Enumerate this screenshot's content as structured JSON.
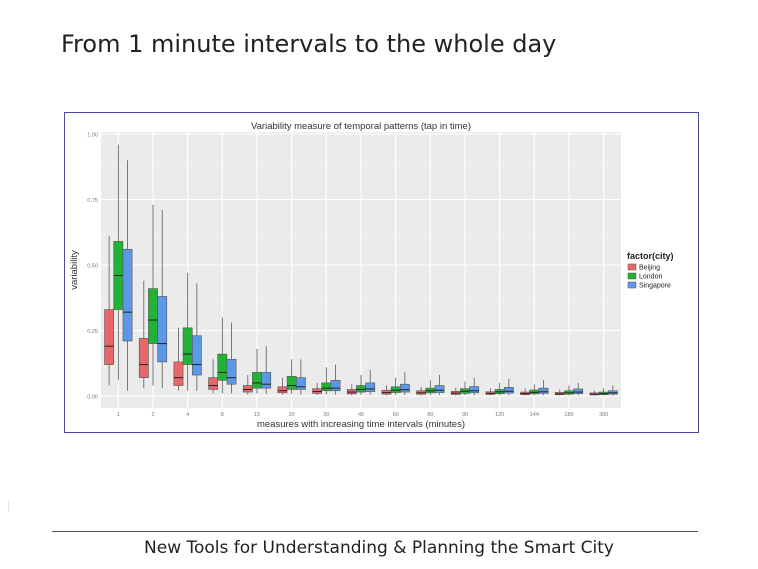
{
  "slide": {
    "title": "From 1 minute intervals to the whole day",
    "footer": "New Tools for Understanding & Planning the Smart City"
  },
  "chart_data": {
    "type": "boxplot",
    "title": "Variability measure of temporal patterns (tap in time)",
    "xlabel": "measures with increasing time intervals (minutes)",
    "ylabel": "variability",
    "ylim": [
      0,
      1
    ],
    "yticks": [
      0.0,
      0.25,
      0.5,
      0.75,
      1.0
    ],
    "ytick_labels": [
      "0.00",
      "0.25",
      "0.50",
      "0.75",
      "1.00"
    ],
    "categories": [
      "1",
      "2",
      "4",
      "8",
      "15",
      "20",
      "30",
      "45",
      "60",
      "80",
      "90",
      "120",
      "144",
      "180",
      "360"
    ],
    "legend": {
      "title": "factor(city)",
      "position": "right"
    },
    "grid": true,
    "colors": {
      "Beijing": "#e8686a",
      "London": "#22b235",
      "Singapore": "#5c98e6",
      "panel": "#ebebeb",
      "gridline": "#ffffff",
      "frame": "#4b4b9b"
    },
    "series": [
      {
        "name": "Beijing",
        "boxes": [
          {
            "low": 0.04,
            "q1": 0.12,
            "median": 0.19,
            "q3": 0.33,
            "high": 0.61
          },
          {
            "low": 0.03,
            "q1": 0.07,
            "median": 0.12,
            "q3": 0.22,
            "high": 0.44
          },
          {
            "low": 0.02,
            "q1": 0.04,
            "median": 0.07,
            "q3": 0.13,
            "high": 0.26
          },
          {
            "low": 0.01,
            "q1": 0.025,
            "median": 0.04,
            "q3": 0.07,
            "high": 0.14
          },
          {
            "low": 0.005,
            "q1": 0.015,
            "median": 0.025,
            "q3": 0.04,
            "high": 0.08
          },
          {
            "low": 0.005,
            "q1": 0.012,
            "median": 0.02,
            "q3": 0.035,
            "high": 0.07
          },
          {
            "low": 0.004,
            "q1": 0.01,
            "median": 0.017,
            "q3": 0.028,
            "high": 0.05
          },
          {
            "low": 0.003,
            "q1": 0.008,
            "median": 0.015,
            "q3": 0.025,
            "high": 0.045
          },
          {
            "low": 0.003,
            "q1": 0.007,
            "median": 0.013,
            "q3": 0.022,
            "high": 0.04
          },
          {
            "low": 0.003,
            "q1": 0.007,
            "median": 0.012,
            "q3": 0.02,
            "high": 0.035
          },
          {
            "low": 0.002,
            "q1": 0.006,
            "median": 0.011,
            "q3": 0.018,
            "high": 0.032
          },
          {
            "low": 0.002,
            "q1": 0.006,
            "median": 0.01,
            "q3": 0.016,
            "high": 0.03
          },
          {
            "low": 0.002,
            "q1": 0.005,
            "median": 0.009,
            "q3": 0.015,
            "high": 0.028
          },
          {
            "low": 0.002,
            "q1": 0.005,
            "median": 0.008,
            "q3": 0.014,
            "high": 0.025
          },
          {
            "low": 0.001,
            "q1": 0.004,
            "median": 0.007,
            "q3": 0.012,
            "high": 0.02
          }
        ]
      },
      {
        "name": "London",
        "boxes": [
          {
            "low": 0.06,
            "q1": 0.33,
            "median": 0.46,
            "q3": 0.59,
            "high": 0.96
          },
          {
            "low": 0.04,
            "q1": 0.2,
            "median": 0.29,
            "q3": 0.41,
            "high": 0.73
          },
          {
            "low": 0.02,
            "q1": 0.12,
            "median": 0.16,
            "q3": 0.26,
            "high": 0.47
          },
          {
            "low": 0.01,
            "q1": 0.06,
            "median": 0.09,
            "q3": 0.16,
            "high": 0.3
          },
          {
            "low": 0.01,
            "q1": 0.03,
            "median": 0.05,
            "q3": 0.09,
            "high": 0.18
          },
          {
            "low": 0.008,
            "q1": 0.025,
            "median": 0.04,
            "q3": 0.075,
            "high": 0.14
          },
          {
            "low": 0.006,
            "q1": 0.02,
            "median": 0.03,
            "q3": 0.05,
            "high": 0.11
          },
          {
            "low": 0.005,
            "q1": 0.015,
            "median": 0.025,
            "q3": 0.04,
            "high": 0.08
          },
          {
            "low": 0.004,
            "q1": 0.013,
            "median": 0.022,
            "q3": 0.035,
            "high": 0.07
          },
          {
            "low": 0.004,
            "q1": 0.012,
            "median": 0.02,
            "q3": 0.03,
            "high": 0.06
          },
          {
            "low": 0.003,
            "q1": 0.01,
            "median": 0.018,
            "q3": 0.028,
            "high": 0.055
          },
          {
            "low": 0.003,
            "q1": 0.009,
            "median": 0.016,
            "q3": 0.025,
            "high": 0.05
          },
          {
            "low": 0.003,
            "q1": 0.008,
            "median": 0.014,
            "q3": 0.023,
            "high": 0.045
          },
          {
            "low": 0.002,
            "q1": 0.007,
            "median": 0.012,
            "q3": 0.02,
            "high": 0.04
          },
          {
            "low": 0.002,
            "q1": 0.005,
            "median": 0.009,
            "q3": 0.015,
            "high": 0.03
          }
        ]
      },
      {
        "name": "Singapore",
        "boxes": [
          {
            "low": 0.02,
            "q1": 0.21,
            "median": 0.32,
            "q3": 0.56,
            "high": 0.9
          },
          {
            "low": 0.03,
            "q1": 0.13,
            "median": 0.2,
            "q3": 0.38,
            "high": 0.71
          },
          {
            "low": 0.02,
            "q1": 0.08,
            "median": 0.12,
            "q3": 0.23,
            "high": 0.43
          },
          {
            "low": 0.01,
            "q1": 0.045,
            "median": 0.07,
            "q3": 0.14,
            "high": 0.28
          },
          {
            "low": 0.008,
            "q1": 0.03,
            "median": 0.045,
            "q3": 0.09,
            "high": 0.19
          },
          {
            "low": 0.006,
            "q1": 0.025,
            "median": 0.035,
            "q3": 0.07,
            "high": 0.14
          },
          {
            "low": 0.005,
            "q1": 0.02,
            "median": 0.03,
            "q3": 0.06,
            "high": 0.12
          },
          {
            "low": 0.005,
            "q1": 0.017,
            "median": 0.027,
            "q3": 0.05,
            "high": 0.1
          },
          {
            "low": 0.004,
            "q1": 0.015,
            "median": 0.024,
            "q3": 0.045,
            "high": 0.09
          },
          {
            "low": 0.004,
            "q1": 0.013,
            "median": 0.022,
            "q3": 0.04,
            "high": 0.08
          },
          {
            "low": 0.003,
            "q1": 0.012,
            "median": 0.02,
            "q3": 0.036,
            "high": 0.07
          },
          {
            "low": 0.003,
            "q1": 0.011,
            "median": 0.018,
            "q3": 0.033,
            "high": 0.065
          },
          {
            "low": 0.003,
            "q1": 0.01,
            "median": 0.016,
            "q3": 0.03,
            "high": 0.06
          },
          {
            "low": 0.002,
            "q1": 0.009,
            "median": 0.015,
            "q3": 0.027,
            "high": 0.05
          },
          {
            "low": 0.002,
            "q1": 0.007,
            "median": 0.012,
            "q3": 0.02,
            "high": 0.04
          }
        ]
      }
    ]
  }
}
